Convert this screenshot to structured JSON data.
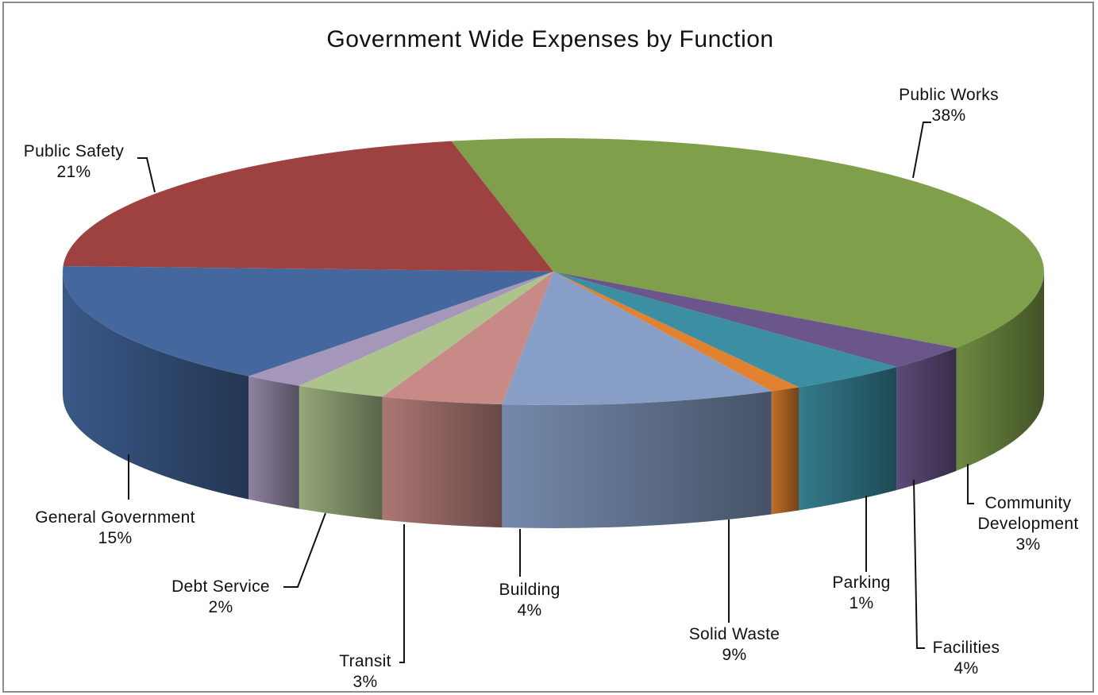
{
  "chart_data": {
    "type": "pie",
    "title": "Government Wide Expenses by Function",
    "slices": [
      {
        "name": "Public Works",
        "value": 38,
        "label": "38%",
        "color": "#7f9f4b",
        "label_lines": [
          "Public Works",
          "38%"
        ]
      },
      {
        "name": "Community Development",
        "value": 3,
        "label": "3%",
        "color": "#6b568c",
        "label_lines": [
          "Community",
          "Development",
          "3%"
        ]
      },
      {
        "name": "Facilities",
        "value": 4,
        "label": "4%",
        "color": "#3c8fa3",
        "label_lines": [
          "Facilities",
          "4%"
        ]
      },
      {
        "name": "Parking",
        "value": 1,
        "label": "1%",
        "color": "#e0822f",
        "label_lines": [
          "Parking",
          "1%"
        ]
      },
      {
        "name": "Solid Waste",
        "value": 9,
        "label": "9%",
        "color": "#879fc6",
        "label_lines": [
          "Solid Waste",
          "9%"
        ]
      },
      {
        "name": "Building",
        "value": 4,
        "label": "4%",
        "color": "#c88a86",
        "label_lines": [
          "Building",
          "4%"
        ]
      },
      {
        "name": "Transit",
        "value": 3,
        "label": "3%",
        "color": "#adc38c",
        "label_lines": [
          "Transit",
          "3%"
        ]
      },
      {
        "name": "Debt Service",
        "value": 2,
        "label": "2%",
        "color": "#a597ba",
        "label_lines": [
          "Debt Service",
          "2%"
        ]
      },
      {
        "name": "General Government",
        "value": 15,
        "label": "15%",
        "color": "#44689e",
        "label_lines": [
          "General Government",
          "15%"
        ]
      },
      {
        "name": "Public Safety",
        "value": 21,
        "label": "21%",
        "color": "#9e4241",
        "label_lines": [
          "Public Safety",
          "21%"
        ]
      }
    ],
    "style": "3d-exploded-none",
    "data_labels": "category name and percentage with leader lines",
    "legend": "none",
    "grid": false
  }
}
